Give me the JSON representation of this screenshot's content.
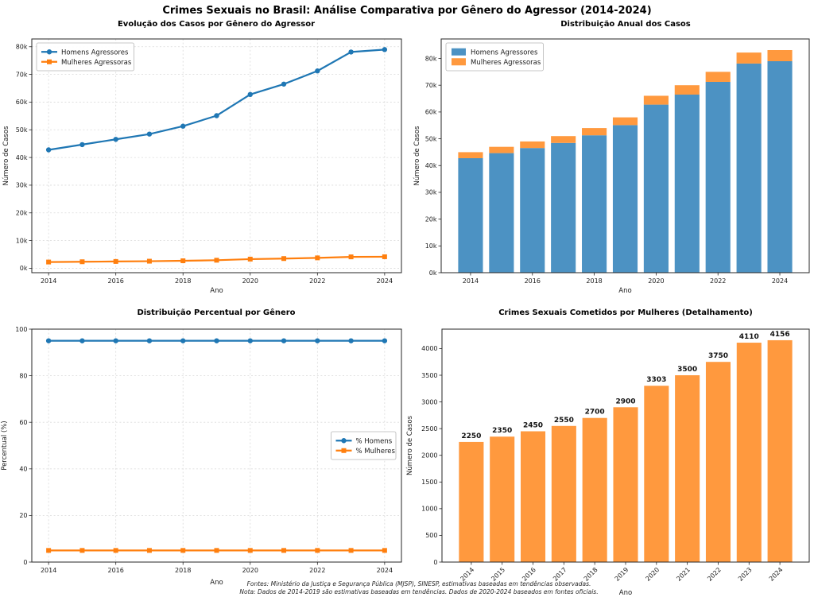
{
  "page_title": "Crimes Sexuais no Brasil: Análise Comparativa por Gênero do Agressor (2014-2024)",
  "footer": {
    "line1": "Fontes: Ministério da Justiça e Segurança Pública (MJSP), SINESP, estimativas baseadas em tendências observadas.",
    "line2": "Nota: Dados de 2014-2019 são estimativas baseadas em tendências. Dados de 2020-2024 baseados em fontes oficiais."
  },
  "chart_data": [
    {
      "type": "line",
      "title": "Evolução dos Casos por Gênero do Agressor",
      "xlabel": "Ano",
      "ylabel": "Número de Casos",
      "x": [
        2014,
        2015,
        2016,
        2017,
        2018,
        2019,
        2020,
        2021,
        2022,
        2023,
        2024
      ],
      "xlim": [
        2013.5,
        2024.5
      ],
      "ylim": [
        -1600,
        82800
      ],
      "yticks": [
        0,
        10000,
        20000,
        30000,
        40000,
        50000,
        60000,
        70000,
        80000
      ],
      "ytick_labels": [
        "0k",
        "10k",
        "20k",
        "30k",
        "40k",
        "50k",
        "60k",
        "70k",
        "80k"
      ],
      "xticks": [
        2014,
        2016,
        2018,
        2020,
        2022,
        2024
      ],
      "grid": true,
      "legend": {
        "pos": "tl",
        "swatch": "line"
      },
      "series": [
        {
          "name": "Homens Agressores",
          "color": "#1f77b4",
          "marker": "circle",
          "values": [
            42750,
            44650,
            46550,
            48450,
            51300,
            55100,
            62757,
            66500,
            71250,
            78090,
            78964
          ]
        },
        {
          "name": "Mulheres Agressoras",
          "color": "#ff7f0e",
          "marker": "square",
          "values": [
            2250,
            2350,
            2450,
            2550,
            2700,
            2900,
            3303,
            3500,
            3750,
            4110,
            4156
          ]
        }
      ]
    },
    {
      "type": "stacked-bar",
      "title": "Distribuição Anual dos Casos",
      "xlabel": "Ano",
      "ylabel": "Número de Casos",
      "x": [
        2014,
        2015,
        2016,
        2017,
        2018,
        2019,
        2020,
        2021,
        2022,
        2023,
        2024
      ],
      "xlim": [
        2013.05,
        2024.95
      ],
      "ylim": [
        0,
        87276
      ],
      "yticks": [
        0,
        10000,
        20000,
        30000,
        40000,
        50000,
        60000,
        70000,
        80000
      ],
      "ytick_labels": [
        "0k",
        "10k",
        "20k",
        "30k",
        "40k",
        "50k",
        "60k",
        "70k",
        "80k"
      ],
      "xticks": [
        2014,
        2016,
        2018,
        2020,
        2022,
        2024
      ],
      "grid": false,
      "legend": {
        "pos": "tl",
        "swatch": "patch"
      },
      "series": [
        {
          "name": "Homens Agressores",
          "color": "#4c92c3",
          "values": [
            42750,
            44650,
            46550,
            48450,
            51300,
            55100,
            62757,
            66500,
            71250,
            78090,
            78964
          ]
        },
        {
          "name": "Mulheres Agressoras",
          "color": "#ff993e",
          "values": [
            2250,
            2350,
            2450,
            2550,
            2700,
            2900,
            3303,
            3500,
            3750,
            4110,
            4156
          ]
        }
      ]
    },
    {
      "type": "line",
      "title": "Distribuição Percentual por Gênero",
      "xlabel": "Ano",
      "ylabel": "Percentual (%)",
      "x": [
        2014,
        2015,
        2016,
        2017,
        2018,
        2019,
        2020,
        2021,
        2022,
        2023,
        2024
      ],
      "xlim": [
        2013.5,
        2024.5
      ],
      "ylim": [
        0,
        100
      ],
      "yticks": [
        0,
        20,
        40,
        60,
        80,
        100
      ],
      "ytick_labels": [
        "0",
        "20",
        "40",
        "60",
        "80",
        "100"
      ],
      "xticks": [
        2014,
        2016,
        2018,
        2020,
        2022,
        2024
      ],
      "grid": true,
      "legend": {
        "pos": "cr",
        "swatch": "line"
      },
      "series": [
        {
          "name": "% Homens",
          "color": "#1f77b4",
          "marker": "circle",
          "values": [
            95,
            95,
            95,
            95,
            95,
            95,
            95,
            95,
            95,
            95,
            95
          ]
        },
        {
          "name": "% Mulheres",
          "color": "#ff7f0e",
          "marker": "square",
          "values": [
            5,
            5,
            5,
            5,
            5,
            5,
            5,
            5,
            5,
            5,
            5
          ]
        }
      ]
    },
    {
      "type": "bar",
      "title": "Crimes Sexuais Cometidos por Mulheres (Detalhamento)",
      "xlabel": "Ano",
      "ylabel": "Número de Casos",
      "x": [
        2014,
        2015,
        2016,
        2017,
        2018,
        2019,
        2020,
        2021,
        2022,
        2023,
        2024
      ],
      "xlim": [
        2013.05,
        2024.95
      ],
      "ylim": [
        0,
        4363.8
      ],
      "yticks": [
        0,
        500,
        1000,
        1500,
        2000,
        2500,
        3000,
        3500,
        4000
      ],
      "ytick_labels": [
        "0",
        "500",
        "1000",
        "1500",
        "2000",
        "2500",
        "3000",
        "3500",
        "4000"
      ],
      "xticks": [
        2014,
        2015,
        2016,
        2017,
        2018,
        2019,
        2020,
        2021,
        2022,
        2023,
        2024
      ],
      "xtick_rotate": true,
      "grid": false,
      "bar_labels": true,
      "series": [
        {
          "name": "Mulheres Agressoras",
          "color": "#ff993e",
          "values": [
            2250,
            2350,
            2450,
            2550,
            2700,
            2900,
            3303,
            3500,
            3750,
            4110,
            4156
          ]
        }
      ]
    }
  ]
}
